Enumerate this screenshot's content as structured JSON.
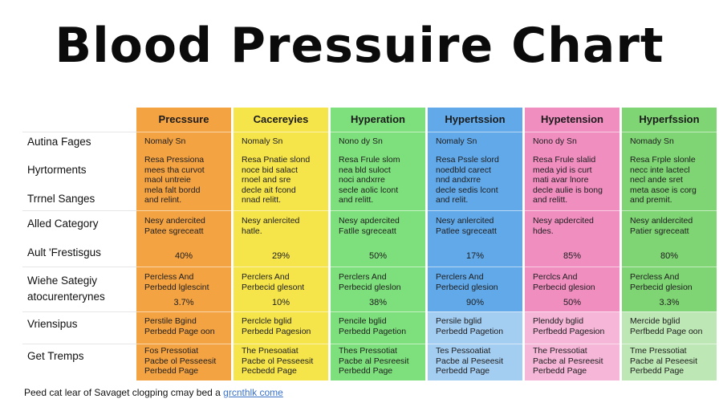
{
  "title": "Blood Pressuire Chart",
  "colors": {
    "orange": "#f4a343",
    "orange_light": "#f8c37d",
    "yellow": "#f5e44a",
    "yellow_light": "#f8ec86",
    "green": "#7ee07c",
    "green_light": "#a9eba6",
    "blue": "#62a9ea",
    "blue_light": "#a4cdf2",
    "pink": "#f08ec0",
    "pink_light": "#f5b6d8",
    "lgreen": "#7fd474",
    "lgreen_light": "#bde7b4",
    "link": "#3b73c9"
  },
  "row_labels": [
    "Autina Fages",
    "Hyrtorments",
    "Trrnel Sanges",
    "Alled Category",
    "Ault 'Frestisgus",
    "Wiehe Sategiy",
    "atocurenterynes",
    "Vriensipus",
    "Get Tremps"
  ],
  "chart_data": {
    "type": "table",
    "title": "Blood Pressuire Chart",
    "columns": [
      {
        "header": "Precssure",
        "r1": "Nomaly Sn",
        "r2": "Resa Pressiona\nmees tha curvot\nmaol untreie\nmela falt bordd\nand relint.",
        "r3": "Nesy andercited\nPatee sgreceatt",
        "pct1": "40%",
        "r4": "Percless And\nPerbedd lglescint",
        "pct2": "3.7%",
        "r5": "Perstile Bgind\nPerbedd Page oon",
        "r6": "Fos Pressotiat\nPacbe ol Pesseesit\nPerbedd Page"
      },
      {
        "header": "Cacereyies",
        "r1": "Nomaly Sn",
        "r2": "Resa Pnatie slond\nnoce bid salact\nrnoel and sre\ndecle ait fcond\nnnad relitt.",
        "r3": "Nesy anlercited\nhatle.",
        "pct1": "29%",
        "r4": "Perclers And\nPerbecid glesont",
        "pct2": "10%",
        "r5": "Perclcle bglid\nPerbedd Pagesion",
        "r6": "The Pnesoatiat\nPacbe ol Pesseesit\nPecbedd Page"
      },
      {
        "header": "Hyperation",
        "r1": "Nono dy Sn",
        "r2": "Resa Frule slom\nnea bld suloct\nnoci andxrre\nsecle aolic lcont\nand relitt.",
        "r3": "Nesy apdercited\nFatlle sgreceatt",
        "pct1": "50%",
        "r4": "Perclers And\nPerbecid gleslon",
        "pct2": "38%",
        "r5": "Pencile bglid\nPerbedd Pagetion",
        "r6": "Thes Pressotiat\nPacbe al Pesreesit\nPerbedd Page"
      },
      {
        "header": "Hypertssion",
        "r1": "Nomaly Sn",
        "r2": "Resa Pssle slord\nnoedbld carect\nnnd andxrre\ndecle sedis lcont\nand relit.",
        "r3": "Nesy anlercited\nPatlee sgreceatt",
        "pct1": "17%",
        "r4": "Perclers And\nPerbecid glesion",
        "pct2": "90%",
        "r5": "Persile bglid\nPerbedd Pagetion",
        "r6": "Tes Pessoatiat\nPacbe al Peseesit\nPerbedd Page"
      },
      {
        "header": "Hypetension",
        "r1": "Nono dy Sn",
        "r2": "Resa Frule slalid\nmeda yid is curt\nmati avar lnore\ndecle aulie is bong\nand relitt.",
        "r3": "Nesy apdercited\nhdes.",
        "pct1": "85%",
        "r4": "Perclcs And\nPerbecid glesion",
        "pct2": "50%",
        "r5": "Plenddy bglid\nPerfbedd Pagesion",
        "r6": "The Pressotiat\nPacbe al Pesreesit\nPerbedd Page"
      },
      {
        "header": "Hyperfssion",
        "r1": "Nomady Sn",
        "r2": "Resa Frple slonle\nnecc inte lactecl\nnecl ande sret\nmeta asoe is corg\nand premit.",
        "r3": "Nesy anldercited\nPatier sgreceatt",
        "pct1": "80%",
        "r4": "Percless And\nPerbecid glesion",
        "pct2": "3.3%",
        "r5": "Mercide bglid\nPerfbedd Page oon",
        "r6": "Tme Pressotiat\nPacbe al Peseesit\nPerbedd Page"
      }
    ]
  },
  "footer": {
    "text": "Peed cat lear of Savaget clogping cmay bed a ",
    "link": "grcnthlk come"
  }
}
